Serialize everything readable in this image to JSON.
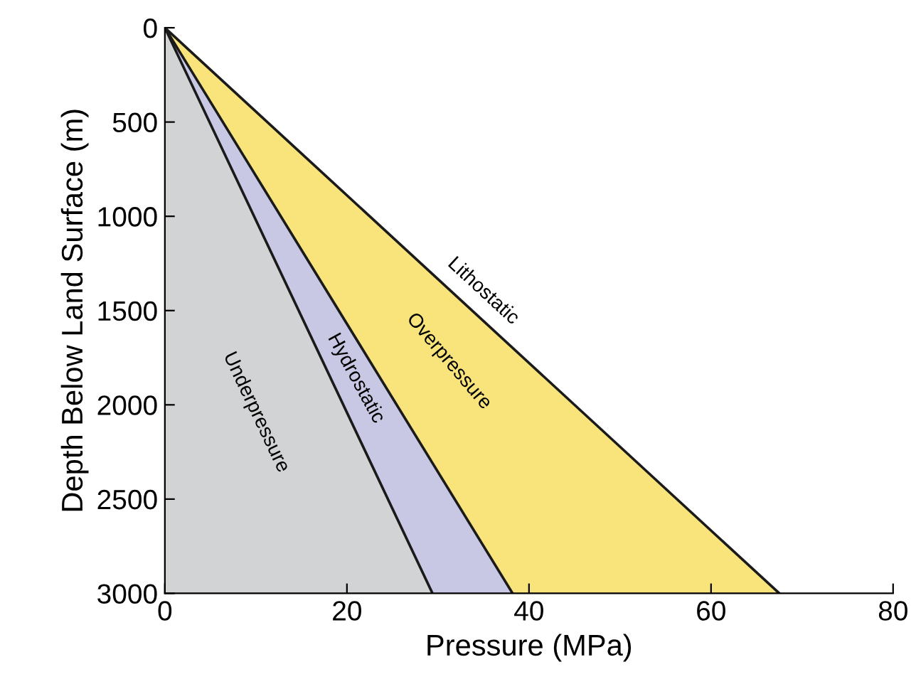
{
  "chart_data": {
    "type": "area",
    "xlabel": "Pressure (MPa)",
    "ylabel": "Depth Below Land Surface (m)",
    "series": [
      {
        "color": "#d2d3d4",
        "x": [
          0,
          29.4
        ],
        "values": [
          0,
          3000
        ]
      },
      {
        "color": "#c9c8e4",
        "x": [
          0,
          38.2
        ],
        "values": [
          0,
          3000
        ]
      },
      {
        "color": "#f9e47c",
        "x": [
          0,
          67.5
        ],
        "values": [
          0,
          3000
        ]
      }
    ],
    "xlim": [
      0,
      80
    ],
    "xticks": [
      0,
      20,
      40,
      60,
      80
    ],
    "ylim": [
      3000,
      0
    ],
    "yticks": [
      0,
      500,
      1000,
      1500,
      2000,
      2500,
      3000
    ],
    "annotations": [
      "Underpressure",
      "Hydrostatic",
      "Overpressure",
      "Lithostatic"
    ],
    "grid": false
  }
}
